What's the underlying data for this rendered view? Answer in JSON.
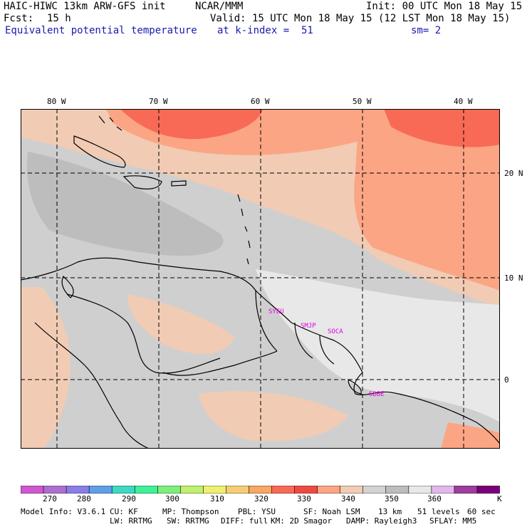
{
  "header": {
    "model": "HAIC-HIWC 13km ARW-GFS init",
    "org": "NCAR/MMM",
    "init": "Init: 00 UTC Mon 18 May 15",
    "fcst_label": "Fcst:",
    "fcst_value": "15 h",
    "valid": "Valid: 15 UTC Mon 18 May 15 (12 LST Mon 18 May 15)",
    "field": "Equivalent potential temperature",
    "level": "at k-index =  51",
    "smooth": "sm= 2"
  },
  "map": {
    "lon_labels": [
      {
        "text": "80 W",
        "lon": -80
      },
      {
        "text": "70 W",
        "lon": -70
      },
      {
        "text": "60 W",
        "lon": -60
      },
      {
        "text": "50 W",
        "lon": -50
      },
      {
        "text": "40 W",
        "lon": -40
      }
    ],
    "lat_labels": [
      {
        "text": "20 N",
        "lat": 20
      },
      {
        "text": "10 N",
        "lat": 10
      },
      {
        "text": "0",
        "lat": 0
      }
    ],
    "lon_range": [
      -83,
      -36.5
    ],
    "lat_range": [
      -6.5,
      26.5
    ],
    "stations": [
      {
        "text": "SYEU",
        "lon": -58.2,
        "lat": 6.8
      },
      {
        "text": "SMJP",
        "lon": -55.2,
        "lat": 5.4
      },
      {
        "text": "SOCA",
        "lon": -52.4,
        "lat": 4.8
      },
      {
        "text": "SBBE",
        "lon": -48.5,
        "lat": -1.4
      }
    ],
    "colors": {
      "gray_dark": "#bdbdbd",
      "gray_mid": "#cfcfcf",
      "gray_light": "#e8e8e8",
      "tan": "#f1cbb4",
      "salmon": "#fba584",
      "red": "#f86a55",
      "violet": "#e2b7ea",
      "coast": "#000000",
      "station": "#e000e0"
    }
  },
  "colorbar": {
    "colors": [
      "#cf57cf",
      "#ad6fcf",
      "#8b7de8",
      "#5f9fe8",
      "#3fd8c2",
      "#3ff09a",
      "#7bf07b",
      "#c0f070",
      "#f0f070",
      "#f6cd74",
      "#f8a764",
      "#f86a55",
      "#ef4a42",
      "#fba584",
      "#f1cbb4",
      "#d3d3d3",
      "#bdbdbd",
      "#e8e8e8",
      "#e2b7ea",
      "#9d3d9d",
      "#7a007a"
    ],
    "labels": [
      "270",
      "280",
      "290",
      "300",
      "310",
      "320",
      "330",
      "340",
      "350",
      "360"
    ],
    "unit": "K"
  },
  "footer": {
    "line1": [
      "Model Info: V3.6.1",
      "CU: KF",
      "MP: Thompson",
      "PBL: YSU",
      "SF: Noah LSM",
      "13 km",
      "51 levels",
      "60 sec"
    ],
    "line2": [
      "LW: RRTMG",
      "SW: RRTMG",
      "DIFF: full",
      "KM: 2D Smagor",
      "DAMP: Rayleigh3",
      "SFLAY: MM5"
    ]
  }
}
